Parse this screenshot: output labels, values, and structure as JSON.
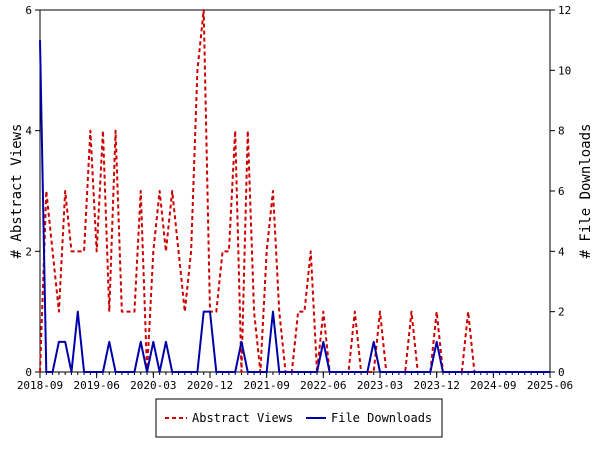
{
  "chart_data": {
    "type": "line",
    "ylabel": "# Abstract Views",
    "y2label": "# File Downloads",
    "ylim": [
      0,
      6
    ],
    "y2lim": [
      0,
      12
    ],
    "yticks": [
      0,
      2,
      4,
      6
    ],
    "y2ticks": [
      0,
      2,
      4,
      6,
      8,
      10,
      12
    ],
    "xlim": [
      "2018-09",
      "2025-06"
    ],
    "xticks": [
      "2018-09",
      "2019-06",
      "2020-03",
      "2020-12",
      "2021-09",
      "2022-06",
      "2023-03",
      "2023-12",
      "2024-09",
      "2025-06"
    ],
    "legend_position": "bottom-center",
    "colors": {
      "abstract_views": "#cc0000",
      "file_downloads": "#0000aa"
    },
    "series": [
      {
        "name": "Abstract Views",
        "axis": "left",
        "style": "dashed",
        "x": [
          "2018-09",
          "2018-10",
          "2018-11",
          "2018-12",
          "2019-01",
          "2019-02",
          "2019-03",
          "2019-04",
          "2019-05",
          "2019-06",
          "2019-07",
          "2019-08",
          "2019-09",
          "2019-10",
          "2019-11",
          "2019-12",
          "2020-01",
          "2020-02",
          "2020-03",
          "2020-04",
          "2020-05",
          "2020-06",
          "2020-07",
          "2020-08",
          "2020-09",
          "2020-10",
          "2020-11",
          "2020-12",
          "2021-01",
          "2021-02",
          "2021-03",
          "2021-04",
          "2021-05",
          "2021-06",
          "2021-07",
          "2021-08",
          "2021-09",
          "2021-10",
          "2021-11",
          "2021-12",
          "2022-01",
          "2022-02",
          "2022-03",
          "2022-04",
          "2022-05",
          "2022-06",
          "2022-07",
          "2022-08",
          "2022-09",
          "2022-10",
          "2022-11",
          "2022-12",
          "2023-01",
          "2023-02",
          "2023-03",
          "2023-04",
          "2023-05",
          "2023-06",
          "2023-07",
          "2023-08",
          "2023-09",
          "2023-10",
          "2023-11",
          "2023-12",
          "2024-01",
          "2024-02",
          "2024-03",
          "2024-04",
          "2024-05",
          "2024-06",
          "2024-07",
          "2024-08",
          "2024-09",
          "2024-10",
          "2024-11",
          "2024-12",
          "2025-01",
          "2025-02",
          "2025-03",
          "2025-04",
          "2025-05",
          "2025-06"
        ],
        "values": [
          0,
          3,
          2,
          1,
          3,
          2,
          2,
          2,
          4,
          2,
          4,
          1,
          4,
          1,
          1,
          1,
          3,
          0,
          2,
          3,
          2,
          3,
          2,
          1,
          2,
          5,
          6,
          1,
          1,
          2,
          2,
          4,
          0,
          4,
          1,
          0,
          2,
          3,
          1,
          0,
          0,
          1,
          1,
          2,
          0,
          1,
          0,
          0,
          0,
          0,
          1,
          0,
          0,
          0,
          1,
          0,
          0,
          0,
          0,
          1,
          0,
          0,
          0,
          1,
          0,
          0,
          0,
          0,
          1,
          0,
          0,
          0,
          0,
          0,
          0,
          0,
          0,
          0,
          0,
          0,
          0,
          0
        ]
      },
      {
        "name": "File Downloads",
        "axis": "right",
        "style": "solid",
        "x": [
          "2018-09",
          "2018-10",
          "2018-11",
          "2018-12",
          "2019-01",
          "2019-02",
          "2019-03",
          "2019-04",
          "2019-05",
          "2019-06",
          "2019-07",
          "2019-08",
          "2019-09",
          "2019-10",
          "2019-11",
          "2019-12",
          "2020-01",
          "2020-02",
          "2020-03",
          "2020-04",
          "2020-05",
          "2020-06",
          "2020-07",
          "2020-08",
          "2020-09",
          "2020-10",
          "2020-11",
          "2020-12",
          "2021-01",
          "2021-02",
          "2021-03",
          "2021-04",
          "2021-05",
          "2021-06",
          "2021-07",
          "2021-08",
          "2021-09",
          "2021-10",
          "2021-11",
          "2021-12",
          "2022-01",
          "2022-02",
          "2022-03",
          "2022-04",
          "2022-05",
          "2022-06",
          "2022-07",
          "2022-08",
          "2022-09",
          "2022-10",
          "2022-11",
          "2022-12",
          "2023-01",
          "2023-02",
          "2023-03",
          "2023-04",
          "2023-05",
          "2023-06",
          "2023-07",
          "2023-08",
          "2023-09",
          "2023-10",
          "2023-11",
          "2023-12",
          "2024-01",
          "2024-02",
          "2024-03",
          "2024-04",
          "2024-05",
          "2024-06",
          "2024-07",
          "2024-08",
          "2024-09",
          "2024-10",
          "2024-11",
          "2024-12",
          "2025-01",
          "2025-02",
          "2025-03",
          "2025-04",
          "2025-05",
          "2025-06"
        ],
        "values": [
          11,
          0,
          0,
          1,
          1,
          0,
          2,
          0,
          0,
          0,
          0,
          1,
          0,
          0,
          0,
          0,
          1,
          0,
          1,
          0,
          1,
          0,
          0,
          0,
          0,
          0,
          2,
          2,
          0,
          0,
          0,
          0,
          1,
          0,
          0,
          0,
          0,
          2,
          0,
          0,
          0,
          0,
          0,
          0,
          0,
          1,
          0,
          0,
          0,
          0,
          0,
          0,
          0,
          1,
          0,
          0,
          0,
          0,
          0,
          0,
          0,
          0,
          0,
          1,
          0,
          0,
          0,
          0,
          0,
          0,
          0,
          0,
          0,
          0,
          0,
          0,
          0,
          0,
          0,
          0,
          0,
          0
        ]
      }
    ]
  }
}
